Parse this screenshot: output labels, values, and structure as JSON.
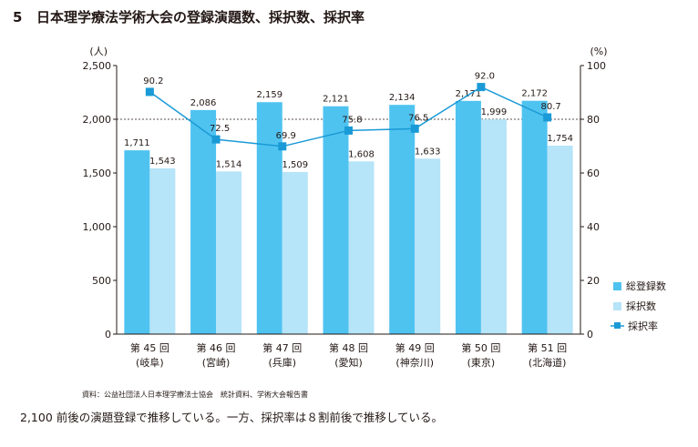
{
  "heading": {
    "number": "5",
    "title": "日本理学療法学術大会の登録演題数、採択数、採択率"
  },
  "source": "資料：公益社団法人日本理学療法士協会　統計資料、学術大会報告書",
  "caption": "2,100 前後の演題登録で推移している。一方、採択率は８割前後で推移している。",
  "colors": {
    "registered": "#4fc3f0",
    "accepted": "#b6e4f8",
    "rate": "#1a9ad6"
  },
  "chart_data": {
    "type": "bar",
    "categories": [
      "第 45 回\n(岐阜)",
      "第 46 回\n(宮崎)",
      "第 47 回\n(兵庫)",
      "第 48 回\n(愛知)",
      "第 49 回\n(神奈川)",
      "第 50 回\n(東京)",
      "第 51 回\n(北海道)"
    ],
    "series": [
      {
        "name": "総登録数",
        "type": "bar",
        "axis": "left",
        "values": [
          1711,
          2086,
          2159,
          2121,
          2134,
          2171,
          2172
        ],
        "labels": [
          "1,711",
          "2,086",
          "2,159",
          "2,121",
          "2,134",
          "2,171",
          "2,172"
        ]
      },
      {
        "name": "採択数",
        "type": "bar",
        "axis": "left",
        "values": [
          1543,
          1514,
          1509,
          1608,
          1633,
          1999,
          1754
        ],
        "labels": [
          "1,543",
          "1,514",
          "1,509",
          "1,608",
          "1,633",
          "1,999",
          "1,754"
        ]
      },
      {
        "name": "採択率",
        "type": "line",
        "axis": "right",
        "values": [
          90.2,
          72.5,
          69.9,
          75.8,
          76.5,
          92.0,
          80.7
        ],
        "labels": [
          "90.2",
          "72.5",
          "69.9",
          "75.8",
          "76.5",
          "92.0",
          "80.7"
        ]
      }
    ],
    "y_left": {
      "unit": "(人)",
      "range": [
        0,
        2500
      ],
      "ticks": [
        "0",
        "500",
        "1,000",
        "1,500",
        "2,000",
        "2,500"
      ]
    },
    "y_right": {
      "unit": "(%)",
      "range": [
        0,
        100
      ],
      "ticks": [
        "0",
        "20",
        "40",
        "60",
        "80",
        "100"
      ]
    },
    "grid": "dashed at 2,000",
    "legend": "right"
  }
}
